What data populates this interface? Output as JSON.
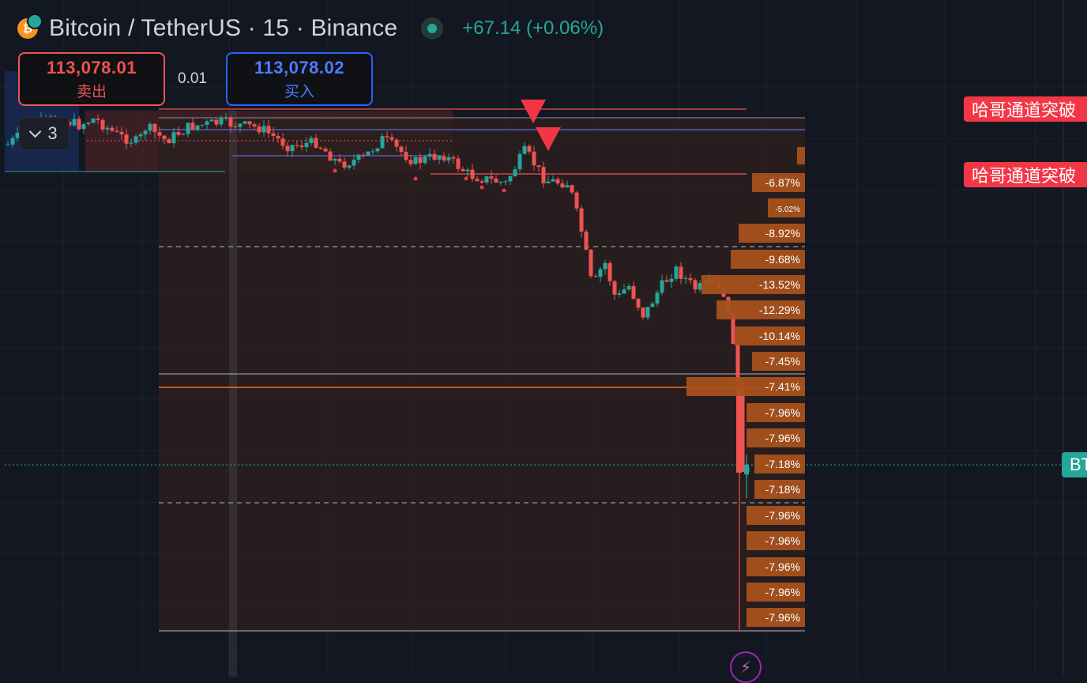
{
  "header": {
    "symbol_title": "Bitcoin / TetherUS · 15 · Binance",
    "change_text": "+67.14 (+0.06%)",
    "coin_glyph": "₿"
  },
  "trade": {
    "sell_price": "113,078.01",
    "sell_label": "卖出",
    "spread": "0.01",
    "buy_price": "113,078.02",
    "buy_label": "买入"
  },
  "indicators_toggle": {
    "count": "3"
  },
  "alerts": [
    {
      "label": "哈哥通道突破"
    },
    {
      "label": "哈哥通道突破"
    }
  ],
  "price_scale_tag": "BT",
  "colors": {
    "up": "#26a69a",
    "down": "#ef5350",
    "level_box": "#a9521c",
    "alert": "#f23645",
    "accent_blue": "#2962ff",
    "orange_line": "#ff6d2e"
  },
  "chart_data": {
    "type": "candlestick",
    "symbol": "BTCUSDT",
    "interval": "15",
    "exchange": "Binance",
    "grid": true,
    "level_labels": [
      "-6.87%",
      "-5.02%",
      "-8.92%",
      "-9.68%",
      "-13.52%",
      "-12.29%",
      "-10.14%",
      "-7.45%",
      "-7.41%",
      "-7.96%",
      "-7.96%",
      "-7.18%",
      "-7.18%",
      "-7.96%",
      "-7.96%",
      "-7.96%",
      "-7.96%",
      "-7.96%"
    ]
  },
  "icons": {
    "status": "status-dot-icon",
    "chevron": "chevron-down-icon",
    "bolt": "lightning-icon"
  }
}
